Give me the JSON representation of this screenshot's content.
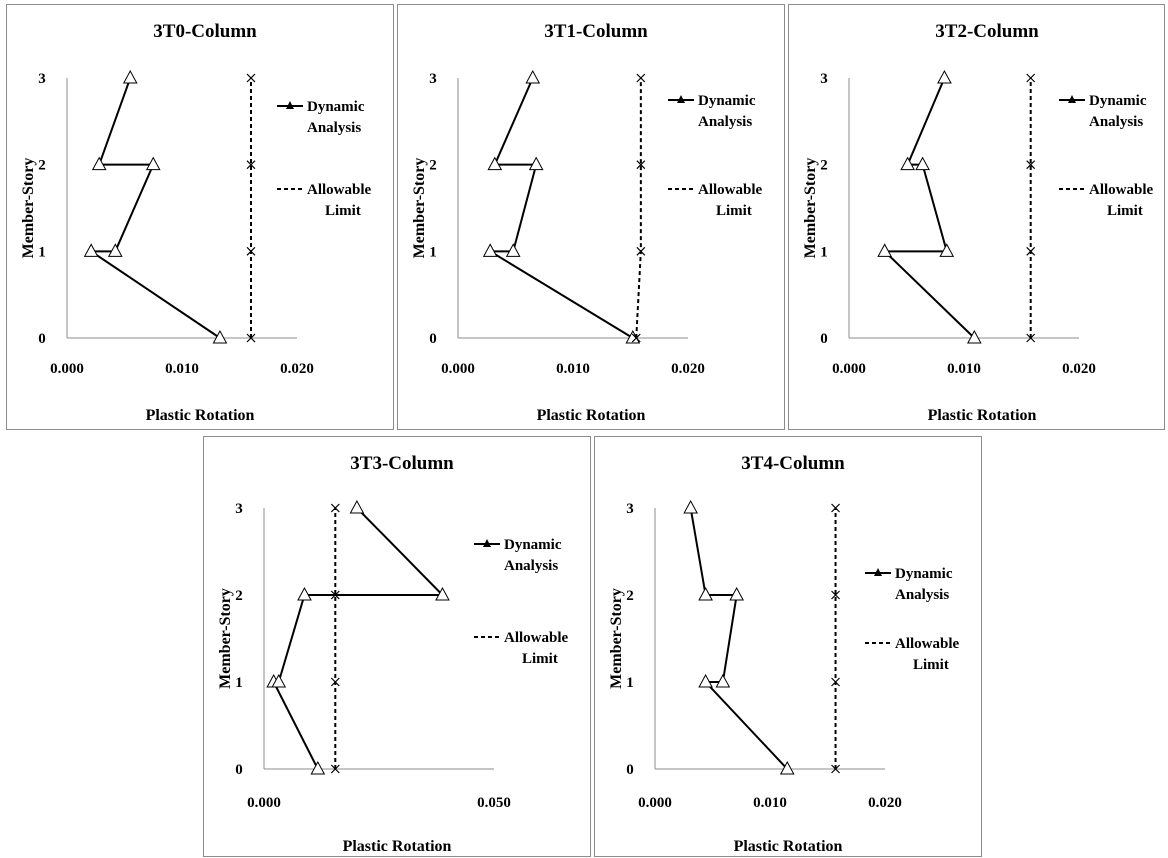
{
  "chart_data": [
    {
      "type": "line",
      "title": "3T0-Column",
      "xlabel": "Plastic Rotation",
      "ylabel": "Member-Story",
      "xlim": [
        0,
        0.02
      ],
      "ylim": [
        0,
        3
      ],
      "xticks": [
        "0.000",
        "0.010",
        "0.020"
      ],
      "yticks": [
        "0",
        "1",
        "2",
        "3"
      ],
      "legend": "right",
      "series": [
        {
          "name": "Dynamic Analysis",
          "points": [
            [
              0.0133,
              0
            ],
            [
              0.0021,
              1
            ],
            [
              0.0042,
              1
            ],
            [
              0.0075,
              2
            ],
            [
              0.0028,
              2
            ],
            [
              0.0055,
              3
            ]
          ]
        },
        {
          "name": "Allowable Limit",
          "points": [
            [
              0.016,
              0
            ],
            [
              0.016,
              1
            ],
            [
              0.016,
              2
            ],
            [
              0.016,
              3
            ]
          ]
        }
      ]
    },
    {
      "type": "line",
      "title": "3T1-Column",
      "xlabel": "Plastic Rotation",
      "ylabel": "Member-Story",
      "xlim": [
        0,
        0.02
      ],
      "ylim": [
        0,
        3
      ],
      "xticks": [
        "0.000",
        "0.010",
        "0.020"
      ],
      "yticks": [
        "0",
        "1",
        "2",
        "3"
      ],
      "legend": "right",
      "series": [
        {
          "name": "Dynamic Analysis",
          "points": [
            [
              0.0152,
              0
            ],
            [
              0.0028,
              1
            ],
            [
              0.0048,
              1
            ],
            [
              0.0068,
              2
            ],
            [
              0.0032,
              2
            ],
            [
              0.0065,
              3
            ]
          ]
        },
        {
          "name": "Allowable Limit",
          "points": [
            [
              0.0155,
              0
            ],
            [
              0.0159,
              1
            ],
            [
              0.0159,
              2
            ],
            [
              0.0159,
              3
            ]
          ]
        }
      ]
    },
    {
      "type": "line",
      "title": "3T2-Column",
      "xlabel": "Plastic Rotation",
      "ylabel": "Member-Story",
      "xlim": [
        0,
        0.02
      ],
      "ylim": [
        0,
        3
      ],
      "xticks": [
        "0.000",
        "0.010",
        "0.020"
      ],
      "yticks": [
        "0",
        "1",
        "2",
        "3"
      ],
      "legend": "right",
      "series": [
        {
          "name": "Dynamic Analysis",
          "points": [
            [
              0.0109,
              0
            ],
            [
              0.0031,
              1
            ],
            [
              0.0085,
              1
            ],
            [
              0.0064,
              2
            ],
            [
              0.0051,
              2
            ],
            [
              0.0083,
              3
            ]
          ]
        },
        {
          "name": "Allowable Limit",
          "points": [
            [
              0.0158,
              0
            ],
            [
              0.0158,
              1
            ],
            [
              0.0158,
              2
            ],
            [
              0.0158,
              3
            ]
          ]
        }
      ]
    },
    {
      "type": "line",
      "title": "3T3-Column",
      "xlabel": "Plastic Rotation",
      "ylabel": "Member-Story",
      "xlim": [
        0,
        0.05
      ],
      "ylim": [
        0,
        3
      ],
      "xticks": [
        "0.000",
        "0.050"
      ],
      "yticks": [
        "0",
        "1",
        "2",
        "3"
      ],
      "legend": "right",
      "series": [
        {
          "name": "Dynamic Analysis",
          "points": [
            [
              0.0117,
              0
            ],
            [
              0.0021,
              1
            ],
            [
              0.0032,
              1
            ],
            [
              0.0088,
              2
            ],
            [
              0.0388,
              2
            ],
            [
              0.0202,
              3
            ]
          ]
        },
        {
          "name": "Allowable Limit",
          "points": [
            [
              0.0155,
              0
            ],
            [
              0.0155,
              1
            ],
            [
              0.0155,
              2
            ],
            [
              0.0155,
              3
            ]
          ]
        }
      ]
    },
    {
      "type": "line",
      "title": "3T4-Column",
      "xlabel": "Plastic Rotation",
      "ylabel": "Member-Story",
      "xlim": [
        0,
        0.02
      ],
      "ylim": [
        0,
        3
      ],
      "xticks": [
        "0.000",
        "0.010",
        "0.020"
      ],
      "yticks": [
        "0",
        "1",
        "2",
        "3"
      ],
      "legend": "right",
      "series": [
        {
          "name": "Dynamic Analysis",
          "points": [
            [
              0.0115,
              0
            ],
            [
              0.0044,
              1
            ],
            [
              0.0059,
              1
            ],
            [
              0.0071,
              2
            ],
            [
              0.0044,
              2
            ],
            [
              0.0031,
              3
            ]
          ]
        },
        {
          "name": "Allowable Limit",
          "points": [
            [
              0.0157,
              0
            ],
            [
              0.0157,
              1
            ],
            [
              0.0157,
              2
            ],
            [
              0.0157,
              3
            ]
          ]
        }
      ]
    }
  ]
}
